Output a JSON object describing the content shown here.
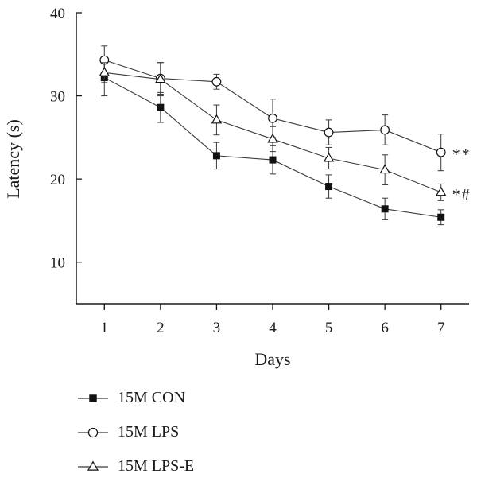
{
  "chart_data": {
    "type": "line",
    "x": [
      1,
      2,
      3,
      4,
      5,
      6,
      7
    ],
    "xlabel": "Days",
    "ylabel": "Latency (s)",
    "xlim": [
      0.5,
      7.5
    ],
    "ylim": [
      5,
      40
    ],
    "yticks": [
      10,
      20,
      30,
      40
    ],
    "xticks": [
      1,
      2,
      3,
      4,
      5,
      6,
      7
    ],
    "grid": false,
    "legend_position": "bottom",
    "series": [
      {
        "name": "15M CON",
        "marker": "filled-square",
        "values": [
          32.2,
          28.6,
          22.8,
          22.3,
          19.1,
          16.4,
          15.4
        ],
        "errors": [
          2.2,
          1.8,
          1.6,
          1.7,
          1.4,
          1.3,
          0.9
        ]
      },
      {
        "name": "15M LPS",
        "marker": "open-circle",
        "values": [
          34.3,
          32.1,
          31.7,
          27.3,
          25.6,
          25.9,
          23.2
        ],
        "errors": [
          1.7,
          1.9,
          0.9,
          2.3,
          1.5,
          1.8,
          2.2
        ]
      },
      {
        "name": "15M LPS-E",
        "marker": "open-triangle",
        "values": [
          32.8,
          32.0,
          27.1,
          24.8,
          22.5,
          21.1,
          18.4
        ],
        "errors": [
          1.2,
          2.0,
          1.8,
          1.5,
          1.3,
          1.8,
          1.0
        ]
      }
    ],
    "annotations": [
      {
        "text": "**",
        "series": "15M LPS",
        "x": 7
      },
      {
        "text": "*#",
        "series": "15M LPS-E",
        "x": 7
      }
    ]
  },
  "colors": {
    "line": "#3a3a3a",
    "marker": "#111111",
    "axis": "#1a1a1a"
  }
}
